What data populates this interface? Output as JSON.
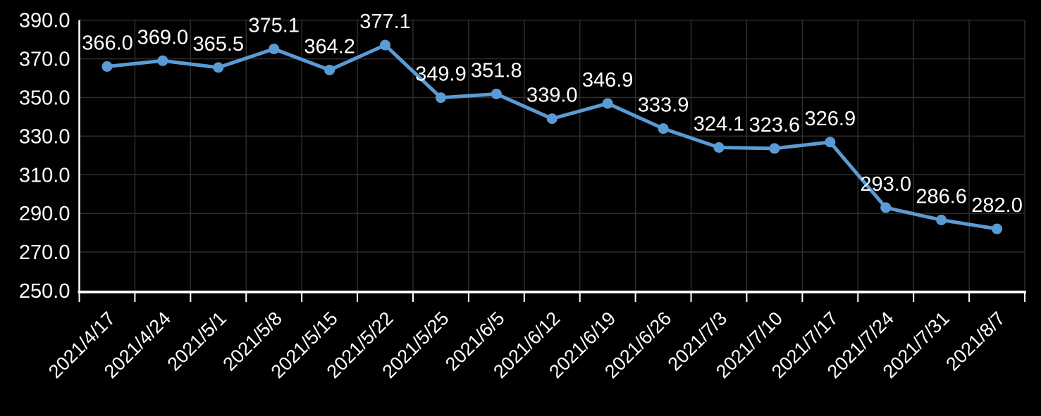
{
  "colors": {
    "background": "#000000",
    "line": "#5B9BD5",
    "marker": "#5B9BD5",
    "grid": "#303030",
    "axis": "#ffffff",
    "text": "#ffffff"
  },
  "chart_data": {
    "type": "line",
    "title": "",
    "xlabel": "",
    "ylabel": "",
    "categories": [
      "2021/4/17",
      "2021/4/24",
      "2021/5/1",
      "2021/5/8",
      "2021/5/15",
      "2021/5/22",
      "2021/5/25",
      "2021/6/5",
      "2021/6/12",
      "2021/6/19",
      "2021/6/26",
      "2021/7/3",
      "2021/7/10",
      "2021/7/17",
      "2021/7/24",
      "2021/7/31",
      "2021/8/7"
    ],
    "values": [
      366.0,
      369.0,
      365.5,
      375.1,
      364.2,
      377.1,
      349.9,
      351.8,
      339.0,
      346.9,
      333.9,
      324.1,
      323.6,
      326.9,
      293.0,
      286.6,
      282.0
    ],
    "data_labels": [
      "366.0",
      "369.0",
      "365.5",
      "375.1",
      "364.2",
      "377.1",
      "349.9",
      "351.8",
      "339.0",
      "346.9",
      "333.9",
      "324.1",
      "323.6",
      "326.9",
      "293.0",
      "286.6",
      "282.0"
    ],
    "ylim": [
      250,
      390
    ],
    "yticks": [
      250,
      270,
      290,
      310,
      330,
      350,
      370,
      390
    ],
    "ytick_labels": [
      "250.0",
      "270.0",
      "290.0",
      "310.0",
      "330.0",
      "350.0",
      "370.0",
      "390.0"
    ],
    "x_label_rotation": 45,
    "grid": true,
    "legend": "none",
    "marker": "circle"
  }
}
